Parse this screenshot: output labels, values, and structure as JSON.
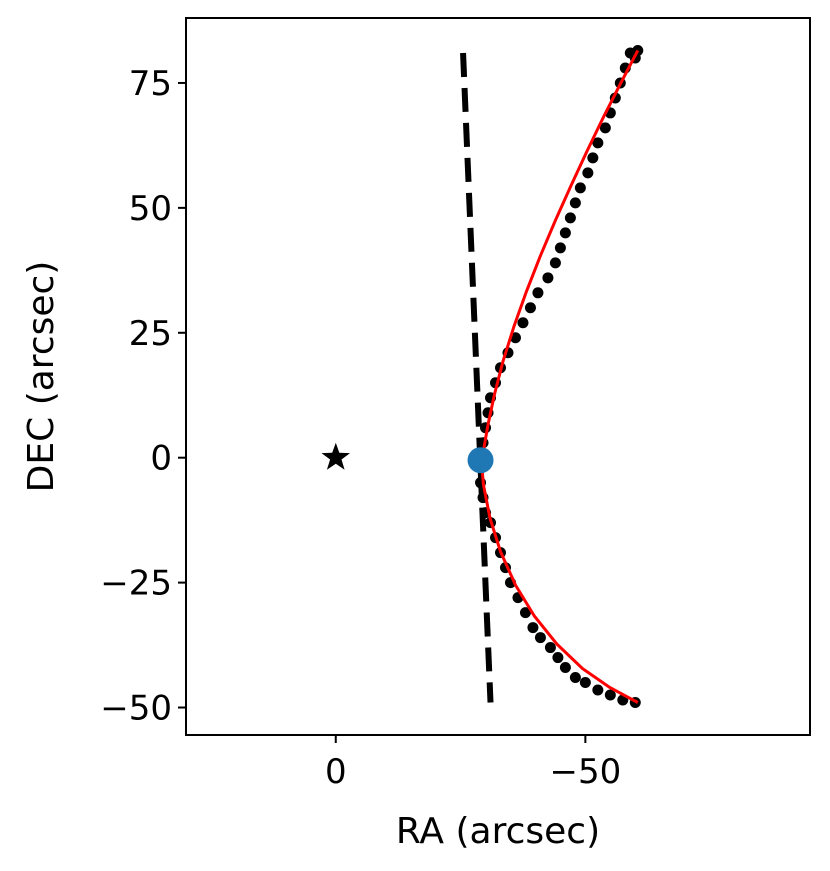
{
  "chart_data": {
    "type": "scatter",
    "title": "",
    "xlabel": "RA (arcsec)",
    "ylabel": "DEC (arcsec)",
    "x_axis_inverted": true,
    "xlim": [
      30,
      -95
    ],
    "ylim": [
      -55.5,
      88
    ],
    "x_ticks": [
      0,
      -50
    ],
    "x_tick_labels": [
      "0",
      "−50"
    ],
    "y_ticks": [
      -50,
      -25,
      0,
      25,
      50,
      75
    ],
    "y_tick_labels": [
      "−50",
      "−25",
      "0",
      "25",
      "50",
      "75"
    ],
    "grid": false,
    "legend": "none",
    "colors": {
      "points": "#000000",
      "fit_curve": "#ff0000",
      "dashed_line": "#000000",
      "vertex_marker": "#1f77b4",
      "star": "#000000"
    },
    "series": [
      {
        "kind": "points",
        "marker": "circle",
        "x": [
          -29.5,
          -30.0,
          -30.5,
          -31.0,
          -32.0,
          -33.0,
          -34.5,
          -36.0,
          -37.5,
          -39.0,
          -40.5,
          -42.5,
          -44.0,
          -45.0,
          -46.0,
          -47.0,
          -48.0,
          -49.0,
          -50.5,
          -51.5,
          -52.5,
          -54.0,
          -55.0,
          -56.0,
          -57.0,
          -58.0,
          -59.0,
          -60.0,
          -60.5,
          -29.0,
          -29.5,
          -30.0,
          -31.0,
          -32.0,
          -33.0,
          -34.0,
          -35.0,
          -36.5,
          -38.0,
          -39.5,
          -41.0,
          -43.0,
          -44.5,
          -46.0,
          -48.0,
          -50.0,
          -52.5,
          -55.0,
          -57.5,
          -60.0
        ],
        "y": [
          3,
          6,
          9,
          12,
          15,
          18,
          21,
          24,
          27,
          30,
          33,
          36,
          39,
          42,
          45,
          48,
          51,
          54,
          57,
          60,
          63,
          66,
          69,
          72,
          75,
          78,
          81,
          80,
          81.5,
          -5,
          -8,
          -11,
          -13,
          -16,
          -19,
          -22,
          -25,
          -28,
          -31,
          -34,
          -36,
          -38,
          -40,
          -42,
          -44,
          -45,
          -46.5,
          -47.5,
          -48.5,
          -49
        ]
      },
      {
        "kind": "fit_curve",
        "line": "solid",
        "x": [
          -60.5,
          -57.0,
          -53.6,
          -50.3,
          -47.1,
          -44.0,
          -41.0,
          -38.2,
          -35.7,
          -33.5,
          -31.8,
          -30.5,
          -29.6,
          -29.2,
          -29.6,
          -30.9,
          -33.0,
          -36.0,
          -39.8,
          -44.3,
          -49.4,
          -54.9,
          -60.5
        ],
        "y": [
          81.5,
          74.8,
          68.1,
          61.3,
          54.4,
          47.5,
          40.4,
          33.3,
          26.3,
          19.3,
          12.7,
          6.6,
          1.5,
          -1.0,
          -5.5,
          -12.1,
          -18.8,
          -25.5,
          -31.7,
          -37.3,
          -42.2,
          -46.0,
          -49.0
        ]
      },
      {
        "kind": "dashed_line",
        "line": "dashed",
        "x": [
          -25.5,
          -31.0
        ],
        "y": [
          81.0,
          -49.0
        ]
      },
      {
        "kind": "vertex_marker",
        "marker": "circle",
        "x": [
          -29.0
        ],
        "y": [
          -0.5
        ]
      },
      {
        "kind": "star",
        "marker": "star",
        "x": [
          0.0
        ],
        "y": [
          0.0
        ]
      }
    ]
  }
}
